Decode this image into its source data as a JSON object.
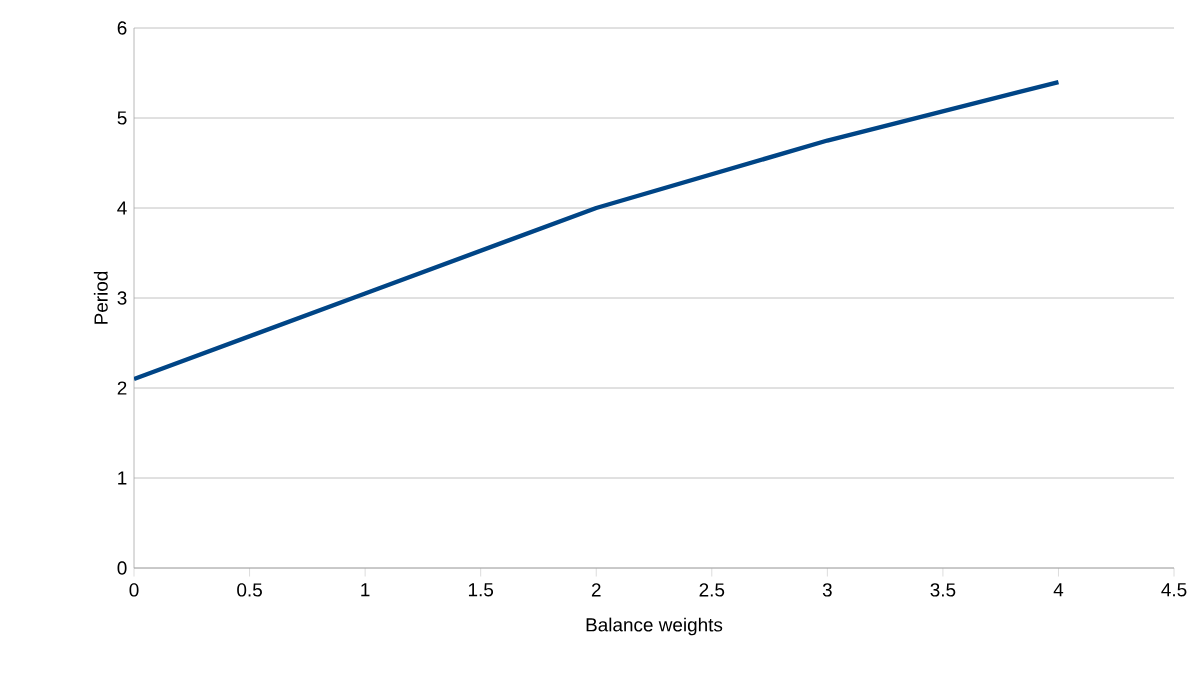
{
  "chart_data": {
    "type": "line",
    "xlabel": "Balance weights",
    "ylabel": "Period",
    "x": [
      0,
      1,
      2,
      3,
      4
    ],
    "series": [
      {
        "color": "#004586",
        "values": [
          2.1,
          3.05,
          4.0,
          4.75,
          5.4
        ]
      }
    ],
    "xlim": [
      0,
      4.5
    ],
    "ylim": [
      0,
      6
    ],
    "xticks": [
      0,
      0.5,
      1,
      1.5,
      2,
      2.5,
      3,
      3.5,
      4,
      4.5
    ],
    "yticks": [
      0,
      1,
      2,
      3,
      4,
      5,
      6
    ],
    "grid": "y",
    "marker": "none",
    "line_style": "solid"
  }
}
